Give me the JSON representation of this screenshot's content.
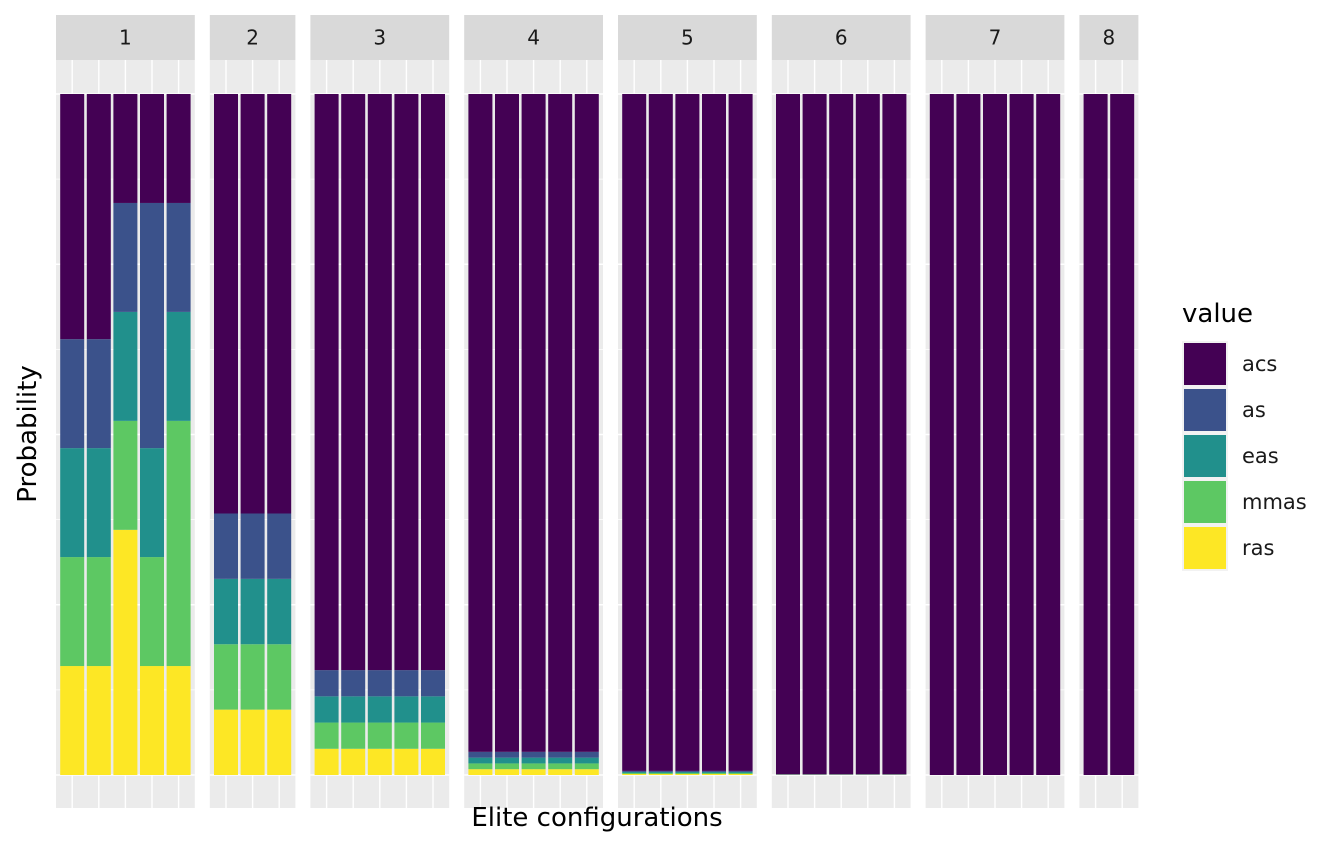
{
  "chart_data": {
    "type": "bar",
    "stacked": true,
    "xlabel": "Elite configurations",
    "ylabel": "Probability",
    "ylim": [
      0,
      1
    ],
    "legend": {
      "title": "value",
      "placement": "right",
      "entries": [
        "acs",
        "as",
        "eas",
        "mmas",
        "ras"
      ]
    },
    "colors": {
      "acs": "#440154",
      "as": "#3b528b",
      "eas": "#21908c",
      "mmas": "#5dc863",
      "ras": "#fde725"
    },
    "panels": [
      {
        "label": "1",
        "bars": [
          {
            "acs": 0.36,
            "as": 0.16,
            "eas": 0.16,
            "mmas": 0.16,
            "ras": 0.16
          },
          {
            "acs": 0.36,
            "as": 0.16,
            "eas": 0.16,
            "mmas": 0.16,
            "ras": 0.16
          },
          {
            "acs": 0.16,
            "as": 0.16,
            "eas": 0.16,
            "mmas": 0.16,
            "ras": 0.36
          },
          {
            "acs": 0.16,
            "as": 0.36,
            "eas": 0.16,
            "mmas": 0.16,
            "ras": 0.16
          },
          {
            "acs": 0.16,
            "as": 0.16,
            "eas": 0.16,
            "mmas": 0.36,
            "ras": 0.16
          }
        ]
      },
      {
        "label": "2",
        "bars": [
          {
            "acs": 0.616,
            "as": 0.096,
            "eas": 0.096,
            "mmas": 0.096,
            "ras": 0.096
          },
          {
            "acs": 0.616,
            "as": 0.096,
            "eas": 0.096,
            "mmas": 0.096,
            "ras": 0.096
          },
          {
            "acs": 0.616,
            "as": 0.096,
            "eas": 0.096,
            "mmas": 0.096,
            "ras": 0.096
          }
        ]
      },
      {
        "label": "3",
        "bars": [
          {
            "acs": 0.846,
            "as": 0.0385,
            "eas": 0.0385,
            "mmas": 0.0385,
            "ras": 0.0385
          },
          {
            "acs": 0.846,
            "as": 0.0385,
            "eas": 0.0385,
            "mmas": 0.0385,
            "ras": 0.0385
          },
          {
            "acs": 0.846,
            "as": 0.0385,
            "eas": 0.0385,
            "mmas": 0.0385,
            "ras": 0.0385
          },
          {
            "acs": 0.846,
            "as": 0.0385,
            "eas": 0.0385,
            "mmas": 0.0385,
            "ras": 0.0385
          },
          {
            "acs": 0.846,
            "as": 0.0385,
            "eas": 0.0385,
            "mmas": 0.0385,
            "ras": 0.0385
          }
        ]
      },
      {
        "label": "4",
        "bars": [
          {
            "acs": 0.966,
            "as": 0.0085,
            "eas": 0.0085,
            "mmas": 0.0085,
            "ras": 0.0085
          },
          {
            "acs": 0.966,
            "as": 0.0085,
            "eas": 0.0085,
            "mmas": 0.0085,
            "ras": 0.0085
          },
          {
            "acs": 0.966,
            "as": 0.0085,
            "eas": 0.0085,
            "mmas": 0.0085,
            "ras": 0.0085
          },
          {
            "acs": 0.966,
            "as": 0.0085,
            "eas": 0.0085,
            "mmas": 0.0085,
            "ras": 0.0085
          },
          {
            "acs": 0.966,
            "as": 0.0085,
            "eas": 0.0085,
            "mmas": 0.0085,
            "ras": 0.0085
          }
        ]
      },
      {
        "label": "5",
        "bars": [
          {
            "acs": 0.994,
            "as": 0.0015,
            "eas": 0.0015,
            "mmas": 0.0015,
            "ras": 0.0015
          },
          {
            "acs": 0.994,
            "as": 0.0015,
            "eas": 0.0015,
            "mmas": 0.0015,
            "ras": 0.0015
          },
          {
            "acs": 0.994,
            "as": 0.0015,
            "eas": 0.0015,
            "mmas": 0.0015,
            "ras": 0.0015
          },
          {
            "acs": 0.994,
            "as": 0.0015,
            "eas": 0.0015,
            "mmas": 0.0015,
            "ras": 0.0015
          },
          {
            "acs": 0.994,
            "as": 0.0015,
            "eas": 0.0015,
            "mmas": 0.0015,
            "ras": 0.0015
          }
        ]
      },
      {
        "label": "6",
        "bars": [
          {
            "acs": 0.999,
            "as": 0.00025,
            "eas": 0.00025,
            "mmas": 0.00025,
            "ras": 0.00025
          },
          {
            "acs": 0.999,
            "as": 0.00025,
            "eas": 0.00025,
            "mmas": 0.00025,
            "ras": 0.00025
          },
          {
            "acs": 0.999,
            "as": 0.00025,
            "eas": 0.00025,
            "mmas": 0.00025,
            "ras": 0.00025
          },
          {
            "acs": 0.999,
            "as": 0.00025,
            "eas": 0.00025,
            "mmas": 0.00025,
            "ras": 0.00025
          },
          {
            "acs": 0.999,
            "as": 0.00025,
            "eas": 0.00025,
            "mmas": 0.00025,
            "ras": 0.00025
          }
        ]
      },
      {
        "label": "7",
        "bars": [
          {
            "acs": 1.0,
            "as": 0,
            "eas": 0,
            "mmas": 0,
            "ras": 0
          },
          {
            "acs": 1.0,
            "as": 0,
            "eas": 0,
            "mmas": 0,
            "ras": 0
          },
          {
            "acs": 1.0,
            "as": 0,
            "eas": 0,
            "mmas": 0,
            "ras": 0
          },
          {
            "acs": 1.0,
            "as": 0,
            "eas": 0,
            "mmas": 0,
            "ras": 0
          },
          {
            "acs": 1.0,
            "as": 0,
            "eas": 0,
            "mmas": 0,
            "ras": 0
          }
        ]
      },
      {
        "label": "8",
        "bars": [
          {
            "acs": 1.0,
            "as": 0,
            "eas": 0,
            "mmas": 0,
            "ras": 0
          },
          {
            "acs": 1.0,
            "as": 0,
            "eas": 0,
            "mmas": 0,
            "ras": 0
          }
        ]
      }
    ]
  }
}
